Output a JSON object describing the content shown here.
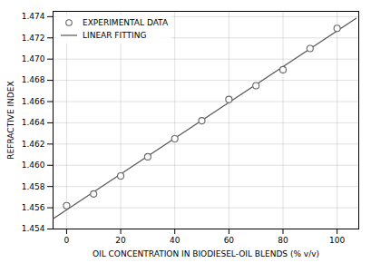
{
  "chart_data": {
    "type": "scatter",
    "xlabel": "OIL CONCENTRATION IN BIODIESEL-OIL BLENDS (% v/v)",
    "ylabel": "REFRACTIVE INDEX",
    "series": [
      {
        "name": "EXPERIMENTAL DATA",
        "type": "scatter",
        "marker": "circle",
        "color": "#666666",
        "x": [
          0,
          10,
          20,
          30,
          40,
          50,
          60,
          70,
          80,
          90,
          100
        ],
        "values": [
          1.4562,
          1.4573,
          1.459,
          1.4608,
          1.4625,
          1.4642,
          1.4662,
          1.4675,
          1.469,
          1.471,
          1.4729
        ]
      },
      {
        "name": "LINEAR FITTING",
        "type": "line",
        "line_style": "solid",
        "color": "#555555",
        "x": [
          -5,
          107
        ],
        "values": [
          1.454966363636,
          1.473843454545
        ]
      }
    ],
    "xlim": [
      -5,
      108
    ],
    "ylim": [
      1.454,
      1.4745
    ],
    "xticks": [
      0,
      20,
      40,
      60,
      80,
      100
    ],
    "yticks": [
      1.454,
      1.456,
      1.458,
      {
        "value": 1.46,
        "label": "1.460"
      },
      1.462,
      1.464,
      1.466,
      1.468,
      {
        "value": 1.47,
        "label": "1.470"
      },
      1.472,
      1.474
    ],
    "grid": true,
    "legend": "upper left"
  }
}
